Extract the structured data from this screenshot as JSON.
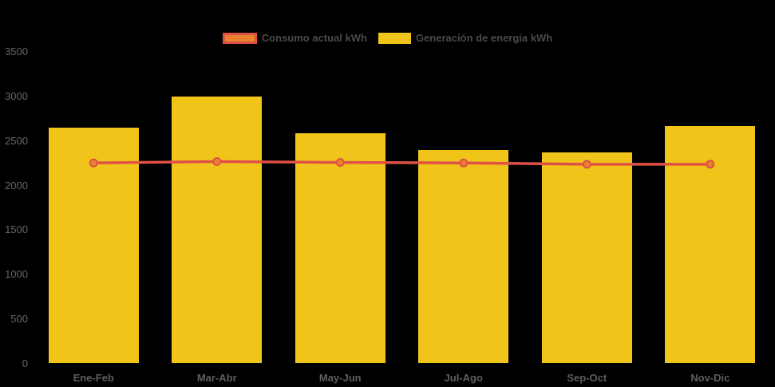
{
  "page": {
    "background": "#000000"
  },
  "chart_data": {
    "type": "bar",
    "title": "",
    "xlabel": "",
    "ylabel": "",
    "categories": [
      "Ene-Feb",
      "Mar-Abr",
      "May-Jun",
      "Jul-Ago",
      "Sep-Oct",
      "Nov-Dic"
    ],
    "series": [
      {
        "name": "Consumo actual kWh",
        "type": "line",
        "values": [
          2245,
          2260,
          2250,
          2245,
          2230,
          2230
        ],
        "line_color": "#df5045",
        "marker_fill": "#e8822f"
      },
      {
        "name": "Generación de energía kWh",
        "type": "bar",
        "values": [
          2640,
          2990,
          2580,
          2390,
          2365,
          2660
        ],
        "color": "#f0c419"
      }
    ],
    "ylim": [
      0,
      3500
    ],
    "yticks": [
      0,
      500,
      1000,
      1500,
      2000,
      2500,
      3000,
      3500
    ],
    "legend_position": "top",
    "grid": false,
    "background": "#000000",
    "axis_tick_color": "#666666",
    "axis_label_color": "#5e5e5e",
    "legend_text_color": "#4a4a4a"
  }
}
